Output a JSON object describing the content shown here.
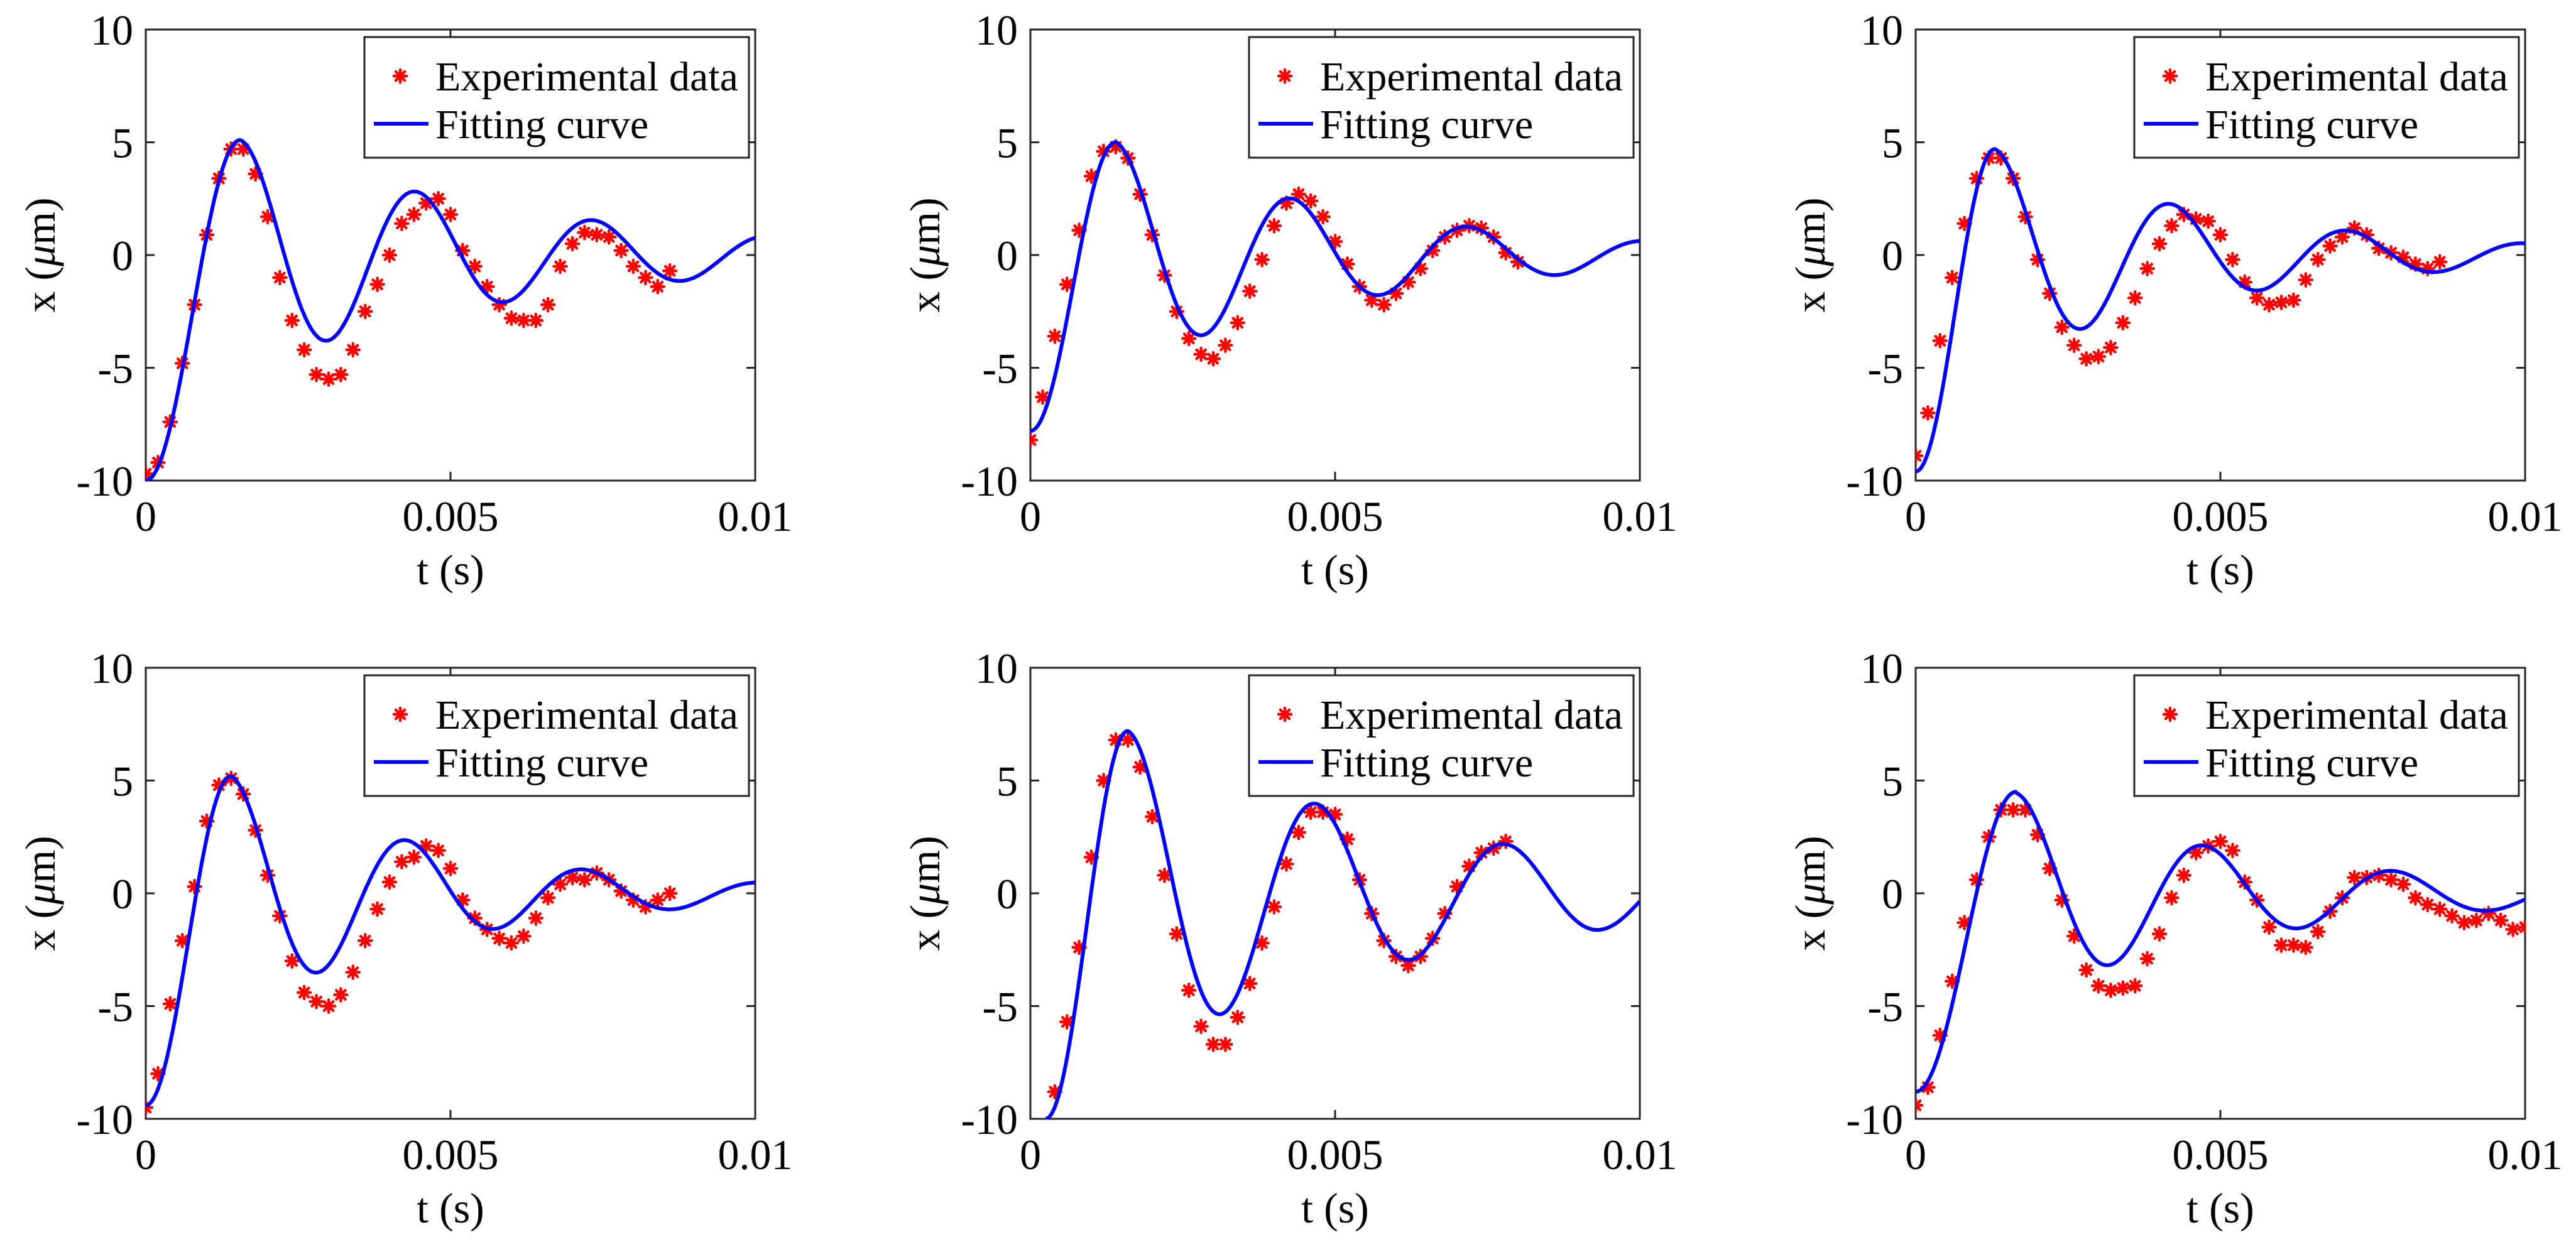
{
  "colors": {
    "data": "#ff0000",
    "fit": "#0000ff",
    "axis": "#262626",
    "background": "#ffffff"
  },
  "chart_data": [
    {
      "type": "scatter",
      "panel": "top-left",
      "title": "",
      "xlabel": "t (s)",
      "ylabel_prefix": "x (",
      "ylabel_unit_greek": "μ",
      "ylabel_unit_rest": "m)",
      "xlim": [
        0,
        0.01
      ],
      "ylim": [
        -10,
        10
      ],
      "xticks": [
        0,
        0.005,
        0.01
      ],
      "xtick_labels": [
        "0",
        "0.005",
        "0.01"
      ],
      "yticks": [
        -10,
        -5,
        0,
        5,
        10
      ],
      "ytick_labels": [
        "-10",
        "-5",
        "0",
        "5",
        "10"
      ],
      "legend": {
        "location": "top-right",
        "entries": [
          "Experimental data",
          "Fitting curve"
        ]
      },
      "series": [
        {
          "name": "Experimental data",
          "mode": "markers",
          "x": [
            0,
            0.0002,
            0.0004,
            0.0006,
            0.0008,
            0.001,
            0.0012,
            0.0014,
            0.0016,
            0.0018,
            0.002,
            0.0022,
            0.0024,
            0.0026,
            0.0028,
            0.003,
            0.0032,
            0.0034,
            0.0036,
            0.0038,
            0.004,
            0.0042,
            0.0044,
            0.0046,
            0.0048,
            0.005,
            0.0052,
            0.0054,
            0.0056,
            0.0058,
            0.006,
            0.0062,
            0.0064,
            0.0066,
            0.0068,
            0.007,
            0.0072,
            0.0074,
            0.0076,
            0.0078,
            0.008,
            0.0082,
            0.0084,
            0.0086
          ],
          "y": [
            -9.7,
            -9.2,
            -7.4,
            -4.8,
            -2.2,
            0.9,
            3.4,
            4.7,
            4.7,
            3.6,
            1.7,
            -1.0,
            -2.9,
            -4.2,
            -5.3,
            -5.5,
            -5.3,
            -4.2,
            -2.5,
            -1.3,
            0.0,
            1.4,
            1.8,
            2.3,
            2.5,
            1.8,
            0.2,
            -0.5,
            -1.4,
            -2.2,
            -2.8,
            -2.9,
            -2.9,
            -2.2,
            -0.5,
            0.5,
            1.0,
            0.9,
            0.8,
            0.2,
            -0.5,
            -1.0,
            -1.4,
            -0.7
          ]
        },
        {
          "name": "Fitting curve",
          "mode": "line",
          "model": "damped-sine",
          "x_range": [
            0,
            0.01
          ],
          "y_start": -10,
          "peak_t": 0.00155,
          "peak_y": 5.1,
          "period": 0.0029,
          "decay_ratio": 0.55,
          "offset": 0
        }
      ]
    },
    {
      "type": "scatter",
      "panel": "top-center",
      "title": "",
      "xlabel": "t (s)",
      "ylabel_prefix": "x (",
      "ylabel_unit_greek": "μ",
      "ylabel_unit_rest": "m)",
      "xlim": [
        0,
        0.01
      ],
      "ylim": [
        -10,
        10
      ],
      "xticks": [
        0,
        0.005,
        0.01
      ],
      "xtick_labels": [
        "0",
        "0.005",
        "0.01"
      ],
      "yticks": [
        -10,
        -5,
        0,
        5,
        10
      ],
      "ytick_labels": [
        "-10",
        "-5",
        "0",
        "5",
        "10"
      ],
      "legend": {
        "location": "top-right",
        "entries": [
          "Experimental data",
          "Fitting curve"
        ]
      },
      "series": [
        {
          "name": "Experimental data",
          "mode": "markers",
          "x": [
            0,
            0.0002,
            0.0004,
            0.0006,
            0.0008,
            0.001,
            0.0012,
            0.0014,
            0.0016,
            0.0018,
            0.002,
            0.0022,
            0.0024,
            0.0026,
            0.0028,
            0.003,
            0.0032,
            0.0034,
            0.0036,
            0.0038,
            0.004,
            0.0042,
            0.0044,
            0.0046,
            0.0048,
            0.005,
            0.0052,
            0.0054,
            0.0056,
            0.0058,
            0.006,
            0.0062,
            0.0064,
            0.0066,
            0.0068,
            0.007,
            0.0072,
            0.0074,
            0.0076,
            0.0078,
            0.008
          ],
          "y": [
            -8.2,
            -6.3,
            -3.6,
            -1.3,
            1.1,
            3.5,
            4.6,
            4.8,
            4.3,
            2.7,
            0.9,
            -0.9,
            -2.5,
            -3.7,
            -4.4,
            -4.6,
            -4.0,
            -3.0,
            -1.6,
            -0.2,
            1.3,
            2.3,
            2.7,
            2.4,
            1.7,
            0.6,
            -0.4,
            -1.4,
            -2.0,
            -2.2,
            -1.7,
            -1.2,
            -0.6,
            0.2,
            0.8,
            1.1,
            1.3,
            1.2,
            0.8,
            0.1,
            -0.3
          ]
        },
        {
          "name": "Fitting curve",
          "mode": "line",
          "model": "damped-sine",
          "x_range": [
            0,
            0.01
          ],
          "y_start": -7.8,
          "peak_t": 0.0014,
          "peak_y": 5.0,
          "period": 0.0029,
          "decay_ratio": 0.5,
          "offset": 0
        }
      ]
    },
    {
      "type": "scatter",
      "panel": "top-right",
      "title": "",
      "xlabel": "t (s)",
      "ylabel_prefix": "x (",
      "ylabel_unit_greek": "μ",
      "ylabel_unit_rest": "m)",
      "xlim": [
        0,
        0.01
      ],
      "ylim": [
        -10,
        10
      ],
      "xticks": [
        0,
        0.005,
        0.01
      ],
      "xtick_labels": [
        "0",
        "0.005",
        "0.01"
      ],
      "yticks": [
        -10,
        -5,
        0,
        5,
        10
      ],
      "ytick_labels": [
        "-10",
        "-5",
        "0",
        "5",
        "10"
      ],
      "legend": {
        "location": "top-right",
        "entries": [
          "Experimental data",
          "Fitting curve"
        ]
      },
      "series": [
        {
          "name": "Experimental data",
          "mode": "markers",
          "x": [
            0,
            0.0002,
            0.0004,
            0.0006,
            0.0008,
            0.001,
            0.0012,
            0.0014,
            0.0016,
            0.0018,
            0.002,
            0.0022,
            0.0024,
            0.0026,
            0.0028,
            0.003,
            0.0032,
            0.0034,
            0.0036,
            0.0038,
            0.004,
            0.0042,
            0.0044,
            0.0046,
            0.0048,
            0.005,
            0.0052,
            0.0054,
            0.0056,
            0.0058,
            0.006,
            0.0062,
            0.0064,
            0.0066,
            0.0068,
            0.007,
            0.0072,
            0.0074,
            0.0076,
            0.0078,
            0.008,
            0.0082,
            0.0084,
            0.0086
          ],
          "y": [
            -8.9,
            -7.0,
            -3.8,
            -1.0,
            1.4,
            3.4,
            4.3,
            4.3,
            3.4,
            1.7,
            -0.2,
            -1.7,
            -3.2,
            -4.0,
            -4.6,
            -4.5,
            -4.1,
            -3.0,
            -1.9,
            -0.6,
            0.5,
            1.3,
            1.8,
            1.6,
            1.5,
            0.9,
            -0.2,
            -1.2,
            -1.9,
            -2.2,
            -2.1,
            -2.0,
            -1.1,
            -0.2,
            0.4,
            0.8,
            1.2,
            0.9,
            0.3,
            0.1,
            -0.1,
            -0.4,
            -0.6,
            -0.3
          ]
        },
        {
          "name": "Fitting curve",
          "mode": "line",
          "model": "damped-sine",
          "x_range": [
            0,
            0.01
          ],
          "y_start": -9.6,
          "peak_t": 0.0013,
          "peak_y": 4.7,
          "period": 0.0029,
          "decay_ratio": 0.48,
          "offset": 0
        }
      ]
    },
    {
      "type": "scatter",
      "panel": "bottom-left",
      "title": "",
      "xlabel": "t (s)",
      "ylabel_prefix": "x (",
      "ylabel_unit_greek": "μ",
      "ylabel_unit_rest": "m)",
      "xlim": [
        0,
        0.01
      ],
      "ylim": [
        -10,
        10
      ],
      "xticks": [
        0,
        0.005,
        0.01
      ],
      "xtick_labels": [
        "0",
        "0.005",
        "0.01"
      ],
      "yticks": [
        -10,
        -5,
        0,
        5,
        10
      ],
      "ytick_labels": [
        "-10",
        "-5",
        "0",
        "5",
        "10"
      ],
      "legend": {
        "location": "top-right",
        "entries": [
          "Experimental data",
          "Fitting curve"
        ]
      },
      "series": [
        {
          "name": "Experimental data",
          "mode": "markers",
          "x": [
            0,
            0.0002,
            0.0004,
            0.0006,
            0.0008,
            0.001,
            0.0012,
            0.0014,
            0.0016,
            0.0018,
            0.002,
            0.0022,
            0.0024,
            0.0026,
            0.0028,
            0.003,
            0.0032,
            0.0034,
            0.0036,
            0.0038,
            0.004,
            0.0042,
            0.0044,
            0.0046,
            0.0048,
            0.005,
            0.0052,
            0.0054,
            0.0056,
            0.0058,
            0.006,
            0.0062,
            0.0064,
            0.0066,
            0.0068,
            0.007,
            0.0072,
            0.0074,
            0.0076,
            0.0078,
            0.008,
            0.0082,
            0.0084,
            0.0086
          ],
          "y": [
            -9.5,
            -8.0,
            -4.9,
            -2.1,
            0.3,
            3.2,
            4.8,
            5.1,
            4.4,
            2.8,
            0.8,
            -1.0,
            -3.0,
            -4.4,
            -4.8,
            -5.0,
            -4.5,
            -3.5,
            -2.1,
            -0.7,
            0.5,
            1.4,
            1.6,
            2.1,
            1.9,
            1.1,
            -0.3,
            -1.1,
            -1.6,
            -2.0,
            -2.2,
            -1.9,
            -1.1,
            -0.2,
            0.4,
            0.7,
            0.6,
            0.9,
            0.6,
            0.1,
            -0.3,
            -0.6,
            -0.3,
            0.0
          ]
        },
        {
          "name": "Fitting curve",
          "mode": "line",
          "model": "damped-sine",
          "x_range": [
            0,
            0.01
          ],
          "y_start": -9.4,
          "peak_t": 0.0014,
          "peak_y": 5.2,
          "period": 0.0029,
          "decay_ratio": 0.45,
          "offset": 0
        }
      ]
    },
    {
      "type": "scatter",
      "panel": "bottom-center",
      "title": "",
      "xlabel": "t (s)",
      "ylabel_prefix": "x (",
      "ylabel_unit_greek": "μ",
      "ylabel_unit_rest": "m)",
      "xlim": [
        0,
        0.01
      ],
      "ylim": [
        -10,
        10
      ],
      "xticks": [
        0,
        0.005,
        0.01
      ],
      "xtick_labels": [
        "0",
        "0.005",
        "0.01"
      ],
      "yticks": [
        -10,
        -5,
        0,
        5,
        10
      ],
      "ytick_labels": [
        "-10",
        "-5",
        "0",
        "5",
        "10"
      ],
      "legend": {
        "location": "top-right",
        "entries": [
          "Experimental data",
          "Fitting curve"
        ]
      },
      "series": [
        {
          "name": "Experimental data",
          "mode": "markers",
          "x": [
            0.0004,
            0.0006,
            0.0008,
            0.001,
            0.0012,
            0.0014,
            0.0016,
            0.0018,
            0.002,
            0.0022,
            0.0024,
            0.0026,
            0.0028,
            0.003,
            0.0032,
            0.0034,
            0.0036,
            0.0038,
            0.004,
            0.0042,
            0.0044,
            0.0046,
            0.0048,
            0.005,
            0.0052,
            0.0054,
            0.0056,
            0.0058,
            0.006,
            0.0062,
            0.0064,
            0.0066,
            0.0068,
            0.007,
            0.0072,
            0.0074,
            0.0076,
            0.0078
          ],
          "y": [
            -8.8,
            -5.7,
            -2.4,
            1.6,
            5.0,
            6.8,
            6.8,
            5.6,
            3.4,
            0.8,
            -1.8,
            -4.3,
            -5.9,
            -6.7,
            -6.7,
            -5.5,
            -4.0,
            -2.2,
            -0.6,
            1.3,
            2.7,
            3.6,
            3.6,
            3.5,
            2.4,
            0.6,
            -0.9,
            -2.1,
            -2.8,
            -3.2,
            -2.8,
            -2.0,
            -0.9,
            0.3,
            1.2,
            1.8,
            2.0,
            2.3
          ]
        },
        {
          "name": "Fitting curve",
          "mode": "line",
          "model": "damped-sine",
          "x_range": [
            0.00025,
            0.01
          ],
          "y_start": -10,
          "peak_t": 0.0016,
          "peak_y": 7.2,
          "period": 0.0031,
          "decay_ratio": 0.55,
          "offset": 0
        }
      ]
    },
    {
      "type": "scatter",
      "panel": "bottom-right",
      "title": "",
      "xlabel": "t (s)",
      "ylabel_prefix": "x (",
      "ylabel_unit_greek": "μ",
      "ylabel_unit_rest": "m)",
      "xlim": [
        0,
        0.01
      ],
      "ylim": [
        -10,
        10
      ],
      "xticks": [
        0,
        0.005,
        0.01
      ],
      "xtick_labels": [
        "0",
        "0.005",
        "0.01"
      ],
      "yticks": [
        -10,
        -5,
        0,
        5,
        10
      ],
      "ytick_labels": [
        "-10",
        "-5",
        "0",
        "5",
        "10"
      ],
      "legend": {
        "location": "top-right",
        "entries": [
          "Experimental data",
          "Fitting curve"
        ]
      },
      "series": [
        {
          "name": "Experimental data",
          "mode": "markers",
          "x": [
            0,
            0.0002,
            0.0004,
            0.0006,
            0.0008,
            0.001,
            0.0012,
            0.0014,
            0.0016,
            0.0018,
            0.002,
            0.0022,
            0.0024,
            0.0026,
            0.0028,
            0.003,
            0.0032,
            0.0034,
            0.0036,
            0.0038,
            0.004,
            0.0042,
            0.0044,
            0.0046,
            0.0048,
            0.005,
            0.0052,
            0.0054,
            0.0056,
            0.0058,
            0.006,
            0.0062,
            0.0064,
            0.0066,
            0.0068,
            0.007,
            0.0072,
            0.0074,
            0.0076,
            0.0078,
            0.008,
            0.0082,
            0.0084,
            0.0086,
            0.0088,
            0.009,
            0.0092,
            0.0094,
            0.0096,
            0.0098,
            0.01
          ],
          "y": [
            -9.4,
            -8.6,
            -6.3,
            -3.9,
            -1.3,
            0.6,
            2.5,
            3.7,
            3.7,
            3.7,
            2.6,
            1.1,
            -0.3,
            -1.9,
            -3.4,
            -4.1,
            -4.3,
            -4.2,
            -4.1,
            -2.9,
            -1.8,
            -0.2,
            0.8,
            1.8,
            2.1,
            2.3,
            1.9,
            0.5,
            -0.3,
            -1.5,
            -2.3,
            -2.3,
            -2.4,
            -1.7,
            -0.8,
            -0.2,
            0.7,
            0.7,
            0.8,
            0.6,
            0.4,
            -0.2,
            -0.5,
            -0.7,
            -1.0,
            -1.3,
            -1.2,
            -0.9,
            -1.2,
            -1.6,
            -1.5
          ]
        },
        {
          "name": "Fitting curve",
          "mode": "line",
          "model": "damped-sine",
          "x_range": [
            0,
            0.01
          ],
          "y_start": -8.8,
          "peak_t": 0.00165,
          "peak_y": 4.5,
          "period": 0.0031,
          "decay_ratio": 0.48,
          "offset": -0.05
        }
      ]
    }
  ]
}
